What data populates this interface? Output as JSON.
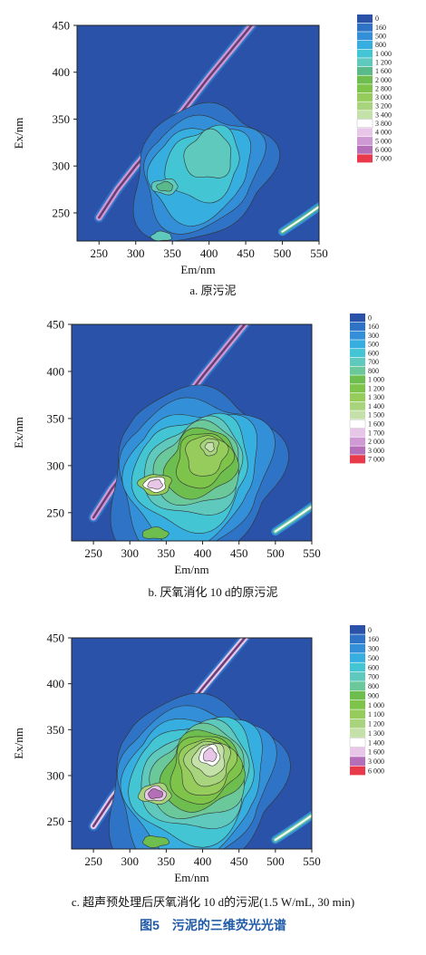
{
  "figure": {
    "caption": "图5　污泥的三维荧光光谱"
  },
  "chart_data": [
    {
      "type": "heatmap",
      "id": "a",
      "subcaption": "a. 原污泥",
      "xlabel": "Em/nm",
      "ylabel": "Ex/nm",
      "xlim": [
        220,
        550
      ],
      "ylim": [
        220,
        450
      ],
      "xticks": [
        "250",
        "300",
        "350",
        "400",
        "450",
        "500",
        "550"
      ],
      "yticks": [
        "250",
        "300",
        "350",
        "400",
        "450"
      ],
      "legend": {
        "labels": [
          "0",
          "160",
          "500",
          "800",
          "1 000",
          "1 200",
          "1 600",
          "2 000",
          "2 800",
          "3 000",
          "3 200",
          "3 400",
          "3 800",
          "4 000",
          "5 000",
          "6 000",
          "7 000"
        ],
        "colors": [
          "#2a52a8",
          "#2f73c6",
          "#3390d8",
          "#37aee0",
          "#44c5d3",
          "#5ec9bc",
          "#5ab98a",
          "#6dbe4e",
          "#7fc44a",
          "#95cc5b",
          "#a8d47e",
          "#c4e1a9",
          "#ffffff",
          "#e7c6e8",
          "#cf9ad3",
          "#b56fb8",
          "#e83a4a"
        ]
      },
      "peaks": [
        {
          "em": 340,
          "ex": 278,
          "intensity": 1600
        },
        {
          "em": 410,
          "ex": 325,
          "intensity": 1200
        },
        {
          "em": 335,
          "ex": 225,
          "intensity": 1200
        }
      ]
    },
    {
      "type": "heatmap",
      "id": "b",
      "subcaption": "b. 厌氧消化 10 d的原污泥",
      "xlabel": "Em/nm",
      "ylabel": "Ex/nm",
      "xlim": [
        220,
        550
      ],
      "ylim": [
        220,
        450
      ],
      "xticks": [
        "250",
        "300",
        "350",
        "400",
        "450",
        "500",
        "550"
      ],
      "yticks": [
        "250",
        "300",
        "350",
        "400",
        "450"
      ],
      "legend": {
        "labels": [
          "0",
          "160",
          "300",
          "500",
          "600",
          "700",
          "800",
          "1 000",
          "1 200",
          "1 300",
          "1 400",
          "1 500",
          "1 600",
          "1 700",
          "2 000",
          "3 000",
          "7 000"
        ],
        "colors": [
          "#2a52a8",
          "#2f73c6",
          "#3390d8",
          "#37aee0",
          "#44c5d3",
          "#5ec9bc",
          "#6bc89a",
          "#6dbe4e",
          "#7fc44a",
          "#95cc5b",
          "#a8d47e",
          "#c4e1a9",
          "#ffffff",
          "#e7c6e8",
          "#cf9ad3",
          "#b56fb8",
          "#e83a4a"
        ]
      },
      "peaks": [
        {
          "em": 335,
          "ex": 280,
          "intensity": 2000
        },
        {
          "em": 410,
          "ex": 320,
          "intensity": 1500
        },
        {
          "em": 335,
          "ex": 228,
          "intensity": 1300
        }
      ]
    },
    {
      "type": "heatmap",
      "id": "c",
      "subcaption": "c. 超声预处理后厌氧消化 10 d的污泥(1.5 W/mL, 30 min)",
      "xlabel": "Em/nm",
      "ylabel": "Ex/nm",
      "xlim": [
        220,
        550
      ],
      "ylim": [
        220,
        450
      ],
      "xticks": [
        "250",
        "300",
        "350",
        "400",
        "450",
        "500",
        "550"
      ],
      "yticks": [
        "250",
        "300",
        "350",
        "400",
        "450"
      ],
      "legend": {
        "labels": [
          "0",
          "160",
          "300",
          "500",
          "600",
          "700",
          "800",
          "900",
          "1 000",
          "1 100",
          "1 200",
          "1 300",
          "1 400",
          "1 600",
          "3 000",
          "6 000"
        ],
        "colors": [
          "#2a52a8",
          "#2f73c6",
          "#3390d8",
          "#37aee0",
          "#44c5d3",
          "#5ec9bc",
          "#6bc89a",
          "#6dbe4e",
          "#7fc44a",
          "#95cc5b",
          "#a8d47e",
          "#c4e1a9",
          "#ffffff",
          "#e7c6e8",
          "#b56fb8",
          "#e83a4a"
        ]
      },
      "peaks": [
        {
          "em": 410,
          "ex": 322,
          "intensity": 1600
        },
        {
          "em": 335,
          "ex": 280,
          "intensity": 2000
        },
        {
          "em": 335,
          "ex": 228,
          "intensity": 1300
        }
      ]
    }
  ]
}
